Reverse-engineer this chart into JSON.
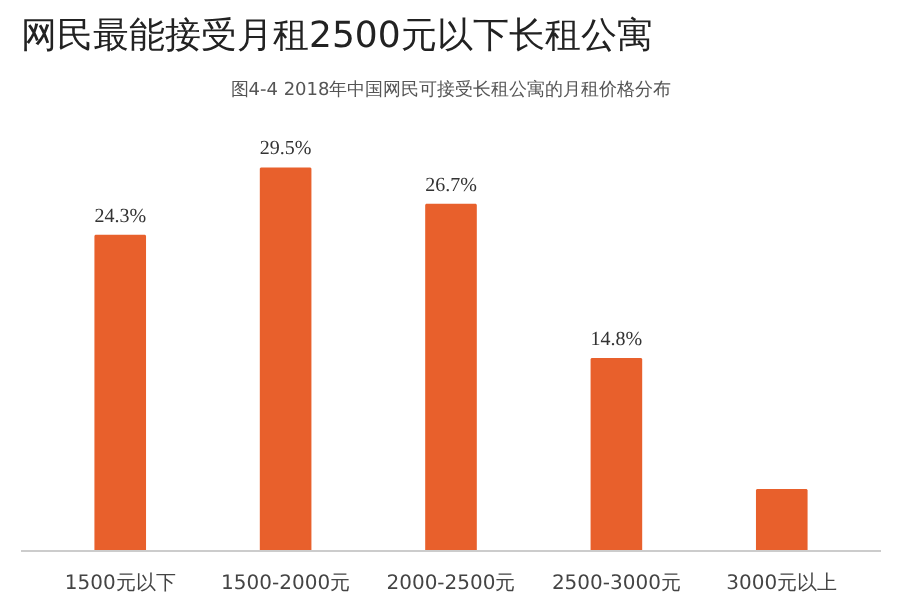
{
  "chart_data": {
    "type": "bar",
    "title": "网民最能接受月租2500元以下长租公寓",
    "subtitle": "图4-4 2018年中国网民可接受长租公寓的月租价格分布",
    "categories": [
      "1500元以下",
      "1500-2000元",
      "2000-2500元",
      "2500-3000元",
      "3000元以上"
    ],
    "values": [
      24.3,
      29.5,
      26.7,
      14.8,
      4.7
    ],
    "color": "#e8602c",
    "value_labels": [
      "24.3%",
      "29.5%",
      "26.7%",
      "14.8%",
      null
    ],
    "grid": false
  }
}
